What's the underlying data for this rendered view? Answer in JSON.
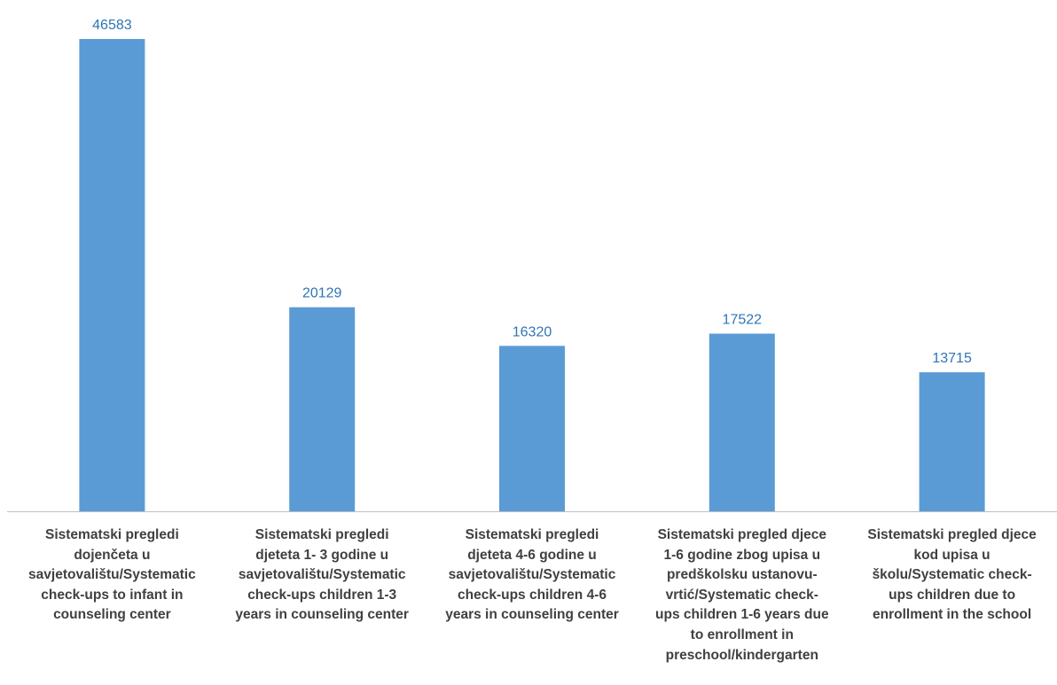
{
  "chart_data": {
    "type": "bar",
    "categories": [
      "Sistematski pregledi dojenčeta u savjetovalištu/Systematic check-ups to infant in counseling center",
      "Sistematski pregledi djeteta 1- 3 godine u savjetovalištu/Systematic check-ups children 1-3 years in counseling center",
      "Sistematski pregledi djeteta 4-6 godine u savjetovalištu/Systematic check-ups children 4-6 years in counseling center",
      "Sistematski pregled djece 1-6 godine zbog upisa u predškolsku ustanovu-vrtić/Systematic check-ups children 1-6 years due to enrollment in preschool/kindergarten",
      "Sistematski pregled djece kod upisa u školu/Systematic check-ups children due to enrollment in the school"
    ],
    "category_lines": [
      [
        "Sistematski pregledi",
        "dojenčeta u",
        "savjetovalištu/Systematic",
        "check-ups to infant in",
        "counseling center"
      ],
      [
        "Sistematski pregledi",
        "djeteta 1- 3 godine u",
        "savjetovalištu/Systematic",
        "check-ups children 1-3",
        "years in counseling center"
      ],
      [
        "Sistematski pregledi",
        "djeteta 4-6 godine u",
        "savjetovalištu/Systematic",
        "check-ups children 4-6",
        "years in counseling center"
      ],
      [
        "Sistematski pregled djece",
        "1-6 godine zbog upisa u",
        "predškolsku ustanovu-",
        "vrtić/Systematic check-",
        "ups children 1-6 years due",
        "to enrollment in",
        "preschool/kindergarten"
      ],
      [
        "Sistematski pregled djece",
        "kod upisa u",
        "školu/Systematic check-",
        "ups children due to",
        "enrollment in the school"
      ]
    ],
    "values": [
      46583,
      20129,
      16320,
      17522,
      13715
    ],
    "value_labels": [
      "46583",
      "20129",
      "16320",
      "17522",
      "13715"
    ],
    "ylim": [
      0,
      46583
    ],
    "data_labels": true,
    "grid": false,
    "legend": "none",
    "colors": {
      "bar": "#5b9bd5",
      "value_label": "#2e75b6",
      "category_label": "#404040",
      "axis": "#bfbfbf"
    }
  }
}
